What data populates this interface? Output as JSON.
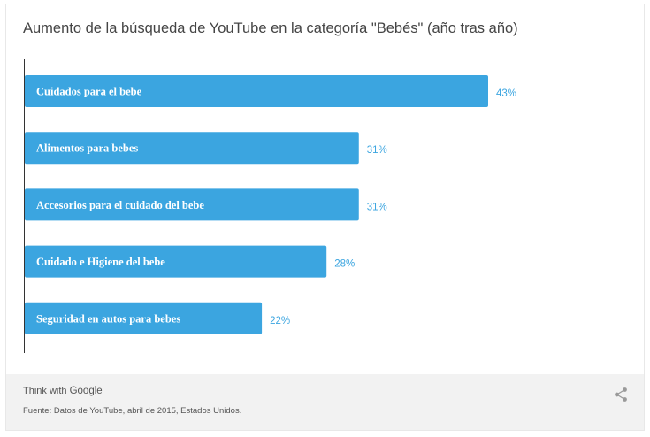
{
  "chart_data": {
    "type": "bar",
    "orientation": "horizontal",
    "title": "Aumento de la búsqueda de YouTube en la categoría \"Bebés\" (año tras año)",
    "categories": [
      "Cuidados para el bebe",
      "Alimentos para bebes",
      "Accesorios para el cuidado del bebe",
      "Cuidado e Higiene del bebe",
      "Seguridad en autos para bebes"
    ],
    "values": [
      43,
      31,
      31,
      28,
      22
    ],
    "value_labels": [
      "43%",
      "31%",
      "31%",
      "28%",
      "22%"
    ],
    "xlim": [
      0,
      43
    ],
    "grid": false,
    "legend": "none",
    "bar_color": "#3ba5e0",
    "value_label_color": "#3ba5e0"
  },
  "footer": {
    "brand_prefix": "Think with ",
    "brand_name": "Google",
    "source": "Fuente: Datos de YouTube, abril de 2015, Estados Unidos."
  },
  "icons": {
    "share": "share-icon"
  }
}
